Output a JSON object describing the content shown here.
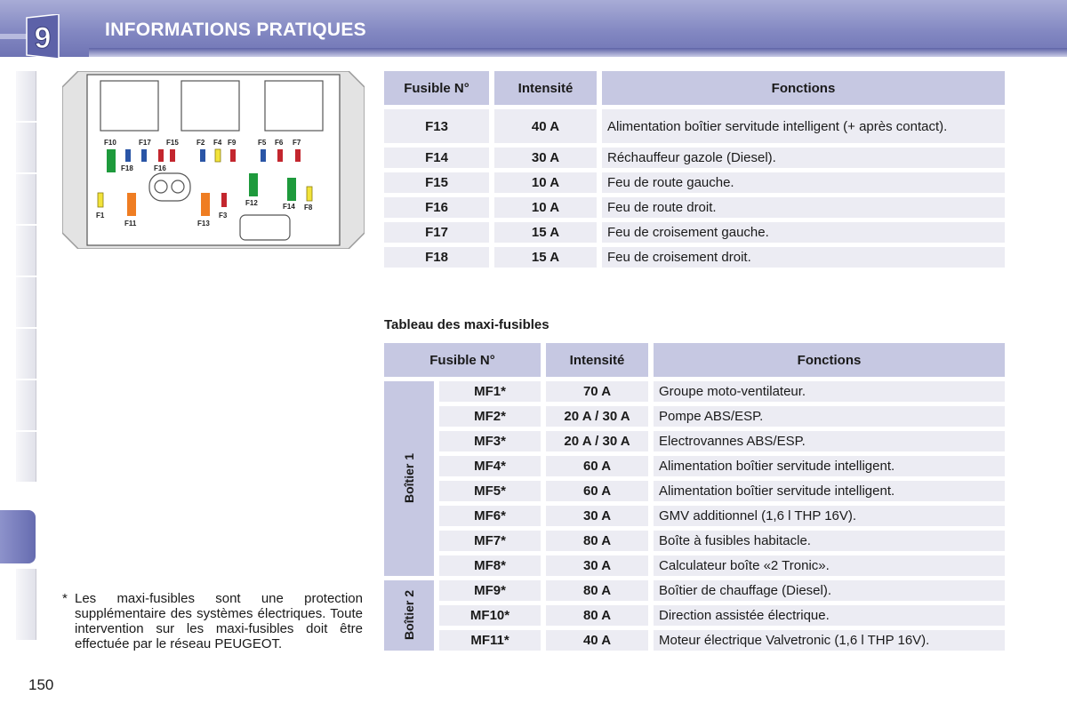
{
  "header": {
    "chapter_number": "9",
    "title": "INFORMATIONS PRATIQUES"
  },
  "diagram": {
    "labels": [
      "F10",
      "F17",
      "F15",
      "F2",
      "F4",
      "F9",
      "F5",
      "F6",
      "F7",
      "F18",
      "F16",
      "F1",
      "F11",
      "F13",
      "F3",
      "F12",
      "F14",
      "F8"
    ],
    "colors": {
      "green": "#1e9a3c",
      "blue": "#2a55a6",
      "red": "#c3262e",
      "yellow": "#f2e33a",
      "orange": "#ef7d22"
    }
  },
  "fuse_table": {
    "headers": [
      "Fusible N°",
      "Intensité",
      "Fonctions"
    ],
    "rows": [
      {
        "fuse": "F13",
        "amp": "40 A",
        "func": "Alimentation boîtier servitude intelligent (+ après contact)."
      },
      {
        "fuse": "F14",
        "amp": "30 A",
        "func": "Réchauffeur gazole (Diesel)."
      },
      {
        "fuse": "F15",
        "amp": "10 A",
        "func": "Feu de route gauche."
      },
      {
        "fuse": "F16",
        "amp": "10 A",
        "func": "Feu de route droit."
      },
      {
        "fuse": "F17",
        "amp": "15 A",
        "func": "Feu de croisement gauche."
      },
      {
        "fuse": "F18",
        "amp": "15 A",
        "func": "Feu de croisement droit."
      }
    ]
  },
  "maxi_title": "Tableau des maxi-fusibles",
  "maxi_table": {
    "headers": [
      "Fusible N°",
      "Intensité",
      "Fonctions"
    ],
    "groups": [
      "Boîtier 1",
      "Boîtier 2"
    ],
    "rows": [
      {
        "fuse": "MF1*",
        "amp": "70 A",
        "func": "Groupe moto-ventilateur."
      },
      {
        "fuse": "MF2*",
        "amp": "20 A / 30 A",
        "func": "Pompe ABS/ESP."
      },
      {
        "fuse": "MF3*",
        "amp": "20 A / 30 A",
        "func": "Electrovannes ABS/ESP."
      },
      {
        "fuse": "MF4*",
        "amp": "60 A",
        "func": "Alimentation boîtier servitude intelligent."
      },
      {
        "fuse": "MF5*",
        "amp": "60 A",
        "func": "Alimentation boîtier servitude intelligent."
      },
      {
        "fuse": "MF6*",
        "amp": "30 A",
        "func": "GMV additionnel (1,6 l THP 16V)."
      },
      {
        "fuse": "MF7*",
        "amp": "80 A",
        "func": "Boîte à fusibles habitacle."
      },
      {
        "fuse": "MF8*",
        "amp": "30 A",
        "func": "Calculateur boîte «2 Tronic»."
      },
      {
        "fuse": "MF9*",
        "amp": "80 A",
        "func": "Boîtier de chauffage (Diesel)."
      },
      {
        "fuse": "MF10*",
        "amp": "80 A",
        "func": "Direction assistée électrique."
      },
      {
        "fuse": "MF11*",
        "amp": "40 A",
        "func": "Moteur électrique Valvetronic (1,6 l THP 16V)."
      }
    ]
  },
  "footnote": {
    "star": "*",
    "text": "Les maxi-fusibles sont une protection supplémentaire des systèmes électriques. Toute intervention sur les maxi-fusibles doit être effectuée par le réseau PEUGEOT."
  },
  "page_number": "150"
}
